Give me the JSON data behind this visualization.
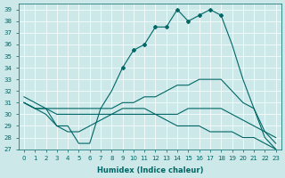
{
  "xlabel": "Humidex (Indice chaleur)",
  "background_color": "#cce8e8",
  "line_color": "#006666",
  "xlim": [
    -0.5,
    23.5
  ],
  "ylim": [
    27,
    39.5
  ],
  "yticks": [
    27,
    28,
    29,
    30,
    31,
    32,
    33,
    34,
    35,
    36,
    37,
    38,
    39
  ],
  "xticks": [
    0,
    1,
    2,
    3,
    4,
    5,
    6,
    7,
    8,
    9,
    10,
    11,
    12,
    13,
    14,
    15,
    16,
    17,
    18,
    19,
    20,
    21,
    22,
    23
  ],
  "s0_x": [
    0,
    1,
    2,
    3,
    4,
    5,
    6,
    7,
    8,
    9,
    10,
    11,
    12,
    13,
    14,
    15,
    16,
    17,
    18,
    19,
    20,
    21,
    22,
    23
  ],
  "s0_y": [
    31.5,
    31.0,
    30.5,
    29.0,
    29.0,
    27.5,
    27.5,
    30.5,
    32.0,
    34.0,
    35.5,
    36.0,
    37.5,
    37.5,
    39.0,
    38.0,
    38.5,
    39.0,
    38.5,
    36.0,
    33.0,
    30.5,
    28.0,
    27.0
  ],
  "s1_x": [
    0,
    1,
    2,
    3,
    4,
    5,
    6,
    7,
    8,
    9,
    10,
    11,
    12,
    13,
    14,
    15,
    16,
    17,
    18,
    19,
    20,
    21,
    22,
    23
  ],
  "s1_y": [
    31.0,
    30.5,
    30.5,
    30.5,
    30.5,
    30.5,
    30.5,
    30.5,
    30.5,
    31.0,
    31.0,
    31.5,
    31.5,
    32.0,
    32.5,
    32.5,
    33.0,
    33.0,
    33.0,
    32.0,
    31.0,
    30.5,
    28.5,
    28.0
  ],
  "s2_x": [
    0,
    1,
    2,
    3,
    4,
    5,
    6,
    7,
    8,
    9,
    10,
    11,
    12,
    13,
    14,
    15,
    16,
    17,
    18,
    19,
    20,
    21,
    22,
    23
  ],
  "s2_y": [
    31.0,
    30.5,
    30.5,
    30.0,
    30.0,
    30.0,
    30.0,
    30.0,
    30.0,
    30.0,
    30.0,
    30.0,
    30.0,
    30.0,
    30.0,
    30.5,
    30.5,
    30.5,
    30.5,
    30.0,
    29.5,
    29.0,
    28.5,
    27.5
  ],
  "s3_x": [
    0,
    1,
    2,
    3,
    4,
    5,
    6,
    7,
    8,
    9,
    10,
    11,
    12,
    13,
    14,
    15,
    16,
    17,
    18,
    19,
    20,
    21,
    22,
    23
  ],
  "s3_y": [
    31.0,
    30.5,
    30.0,
    29.0,
    28.5,
    28.5,
    29.0,
    29.5,
    30.0,
    30.5,
    30.5,
    30.5,
    30.0,
    29.5,
    29.0,
    29.0,
    29.0,
    28.5,
    28.5,
    28.5,
    28.0,
    28.0,
    27.5,
    27.0
  ]
}
